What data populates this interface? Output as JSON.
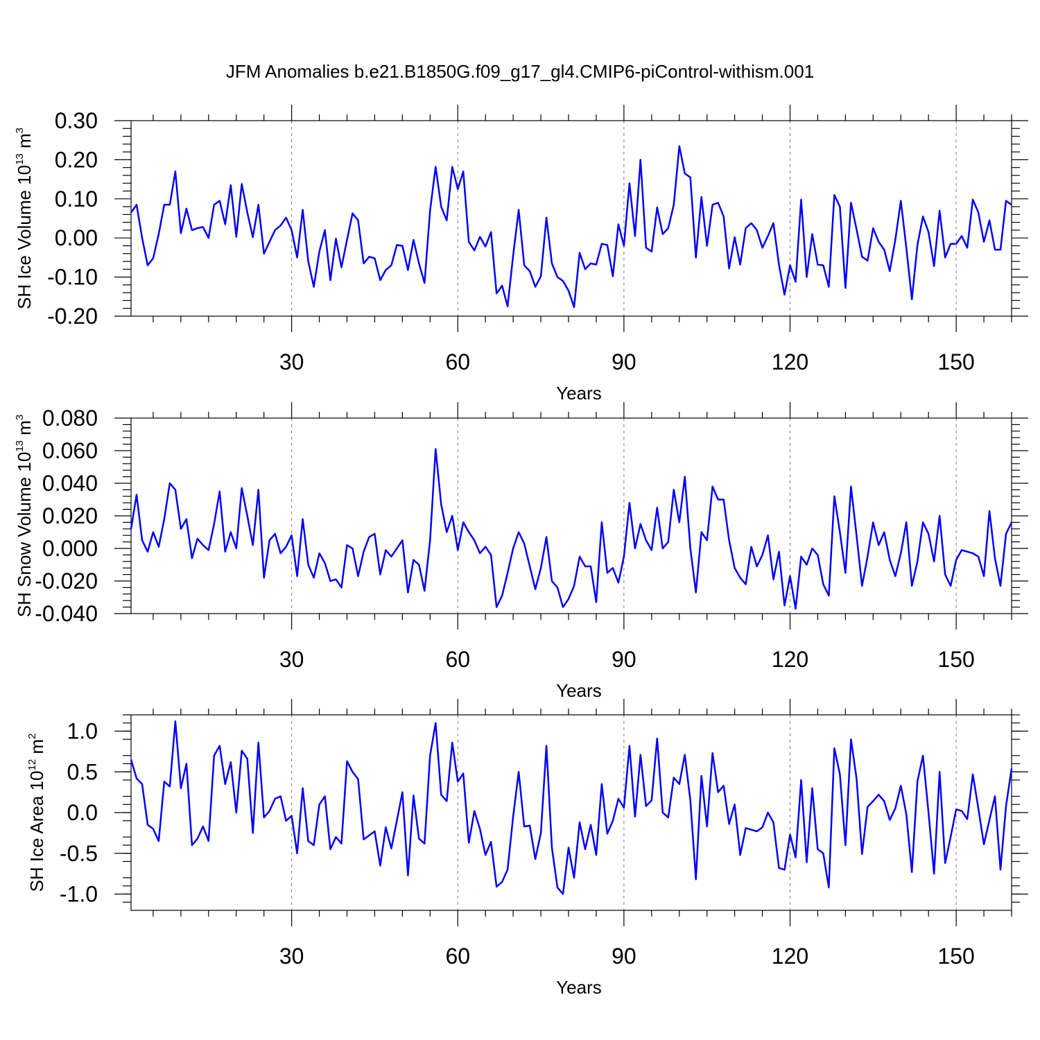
{
  "title": "JFM Anomalies b.e21.B1850G.f09_g17_gl4.CMIP6-piControl-withism.001",
  "colors": {
    "line": "#0000ff",
    "axis": "#000000",
    "grid": "#777777"
  },
  "chart_data": [
    {
      "type": "line",
      "ylabel": {
        "base": "SH Ice Volume 10",
        "exp": "13",
        "unit": " m",
        "unit_exp": "3"
      },
      "xlabel": "Years",
      "xlim": [
        1,
        160
      ],
      "ylim": [
        -0.2,
        0.3
      ],
      "xticks": [
        30,
        60,
        90,
        120,
        150
      ],
      "yticks": [
        "-0.20",
        "-0.10",
        "0.00",
        "0.10",
        "0.20",
        "0.30"
      ],
      "grid_x": true,
      "series": [
        {
          "name": "SH Ice Volume",
          "values": [
            0.065,
            0.085,
            0.0,
            -0.07,
            -0.052,
            0.01,
            0.085,
            0.085,
            0.17,
            0.012,
            0.075,
            0.02,
            0.025,
            0.028,
            0.0,
            0.085,
            0.095,
            0.035,
            0.135,
            0.003,
            0.138,
            0.065,
            0.002,
            0.085,
            -0.04,
            -0.01,
            0.02,
            0.032,
            0.052,
            0.02,
            -0.05,
            0.072,
            -0.06,
            -0.125,
            -0.035,
            0.02,
            -0.108,
            -0.002,
            -0.075,
            -0.005,
            0.063,
            0.045,
            -0.065,
            -0.048,
            -0.052,
            -0.108,
            -0.082,
            -0.07,
            -0.018,
            -0.02,
            -0.082,
            -0.005,
            -0.065,
            -0.115,
            0.07,
            0.182,
            0.08,
            0.045,
            0.182,
            0.125,
            0.17,
            -0.01,
            -0.032,
            0.003,
            -0.022,
            0.015,
            -0.142,
            -0.122,
            -0.175,
            -0.045,
            0.072,
            -0.07,
            -0.085,
            -0.125,
            -0.098,
            0.052,
            -0.065,
            -0.1,
            -0.11,
            -0.135,
            -0.177,
            -0.038,
            -0.08,
            -0.065,
            -0.068,
            -0.015,
            -0.018,
            -0.098,
            0.035,
            -0.02,
            0.14,
            0.005,
            0.2,
            -0.025,
            -0.035,
            0.078,
            0.01,
            0.025,
            0.085,
            0.235,
            0.165,
            0.155,
            -0.05,
            0.105,
            -0.02,
            0.085,
            0.09,
            0.055,
            -0.078,
            0.002,
            -0.068,
            0.025,
            0.038,
            0.02,
            -0.025,
            0.005,
            0.038,
            -0.068,
            -0.145,
            -0.07,
            -0.112,
            0.098,
            -0.1,
            0.01,
            -0.068,
            -0.07,
            -0.125,
            0.11,
            0.08,
            -0.128,
            0.09,
            0.022,
            -0.048,
            -0.058,
            0.025,
            -0.01,
            -0.03,
            -0.085,
            -0.005,
            0.095,
            -0.025,
            -0.157,
            -0.018,
            0.055,
            0.015,
            -0.072,
            0.07,
            -0.05,
            -0.015,
            -0.015,
            0.005,
            -0.025,
            0.098,
            0.065,
            -0.01,
            0.045,
            -0.03,
            -0.03,
            0.095,
            0.085
          ]
        }
      ]
    },
    {
      "type": "line",
      "ylabel": {
        "base": "SH Snow Volume 10",
        "exp": "13",
        "unit": " m",
        "unit_exp": "3"
      },
      "xlabel": "Years",
      "xlim": [
        1,
        160
      ],
      "ylim": [
        -0.04,
        0.08
      ],
      "xticks": [
        30,
        60,
        90,
        120,
        150
      ],
      "yticks": [
        "-0.040",
        "-0.020",
        "0.000",
        "0.020",
        "0.040",
        "0.060",
        "0.080"
      ],
      "grid_x": true,
      "series": [
        {
          "name": "SH Snow Volume",
          "values": [
            0.012,
            0.033,
            0.005,
            -0.002,
            0.01,
            0.001,
            0.018,
            0.04,
            0.036,
            0.012,
            0.018,
            -0.006,
            0.006,
            0.002,
            -0.001,
            0.015,
            0.035,
            -0.002,
            0.01,
            0.0,
            0.037,
            0.02,
            0.002,
            0.036,
            -0.018,
            0.005,
            0.009,
            -0.003,
            0.001,
            0.008,
            -0.017,
            0.018,
            -0.01,
            -0.018,
            -0.003,
            -0.009,
            -0.02,
            -0.019,
            -0.024,
            0.002,
            0.0,
            -0.017,
            -0.002,
            0.007,
            0.009,
            -0.016,
            -0.001,
            -0.005,
            0.0,
            0.005,
            -0.027,
            -0.007,
            -0.01,
            -0.026,
            0.005,
            0.061,
            0.027,
            0.01,
            0.02,
            -0.001,
            0.016,
            0.01,
            0.005,
            -0.003,
            0.001,
            -0.004,
            -0.036,
            -0.029,
            -0.015,
            0.0,
            0.01,
            0.003,
            -0.011,
            -0.025,
            -0.012,
            0.007,
            -0.02,
            -0.024,
            -0.036,
            -0.031,
            -0.023,
            -0.005,
            -0.011,
            -0.011,
            -0.033,
            0.016,
            -0.015,
            -0.012,
            -0.021,
            -0.005,
            0.028,
            0.0,
            0.015,
            0.005,
            -0.001,
            0.025,
            0.0,
            0.004,
            0.036,
            0.016,
            0.044,
            0.0,
            -0.027,
            0.01,
            0.005,
            0.038,
            0.03,
            0.03,
            0.005,
            -0.012,
            -0.018,
            -0.022,
            0.001,
            -0.011,
            -0.004,
            0.008,
            -0.019,
            -0.002,
            -0.035,
            -0.017,
            -0.037,
            -0.005,
            -0.01,
            0.0,
            -0.004,
            -0.022,
            -0.029,
            0.032,
            0.01,
            -0.015,
            0.038,
            0.008,
            -0.023,
            -0.005,
            0.016,
            0.002,
            0.01,
            -0.007,
            -0.017,
            -0.003,
            0.016,
            -0.023,
            -0.008,
            0.016,
            0.009,
            -0.008,
            0.02,
            -0.016,
            -0.023,
            -0.007,
            -0.001,
            -0.002,
            -0.003,
            -0.005,
            -0.017,
            0.023,
            -0.006,
            -0.023,
            0.009,
            0.016
          ]
        }
      ]
    },
    {
      "type": "line",
      "ylabel": {
        "base": "SH Ice Area 10",
        "exp": "12",
        "unit": " m",
        "unit_exp": "2"
      },
      "xlabel": "Years",
      "xlim": [
        1,
        160
      ],
      "ylim": [
        -1.2,
        1.2
      ],
      "xticks": [
        30,
        60,
        90,
        120,
        150
      ],
      "yticks": [
        "-1.0",
        "-0.5",
        "0.0",
        "0.5",
        "1.0"
      ],
      "grid_x": true,
      "series": [
        {
          "name": "SH Ice Area",
          "values": [
            0.65,
            0.42,
            0.35,
            -0.15,
            -0.2,
            -0.35,
            0.38,
            0.32,
            1.12,
            0.3,
            0.6,
            -0.4,
            -0.32,
            -0.17,
            -0.35,
            0.7,
            0.82,
            0.35,
            0.62,
            0.0,
            0.76,
            0.66,
            -0.25,
            0.86,
            -0.06,
            0.02,
            0.17,
            0.2,
            -0.1,
            -0.04,
            -0.5,
            0.3,
            -0.35,
            -0.4,
            0.1,
            0.2,
            -0.45,
            -0.3,
            -0.38,
            0.63,
            0.5,
            0.41,
            -0.33,
            -0.28,
            -0.23,
            -0.65,
            -0.18,
            -0.44,
            -0.1,
            0.25,
            -0.77,
            0.21,
            -0.32,
            -0.38,
            0.7,
            1.1,
            0.22,
            0.14,
            0.86,
            0.38,
            0.48,
            -0.37,
            0.02,
            -0.2,
            -0.52,
            -0.36,
            -0.91,
            -0.85,
            -0.7,
            -0.05,
            0.5,
            -0.17,
            -0.16,
            -0.57,
            -0.25,
            0.82,
            -0.43,
            -0.92,
            -1.0,
            -0.43,
            -0.8,
            -0.12,
            -0.45,
            -0.15,
            -0.52,
            0.35,
            -0.26,
            -0.1,
            0.17,
            0.06,
            0.82,
            -0.05,
            0.71,
            0.08,
            0.15,
            0.91,
            0.0,
            -0.06,
            0.43,
            0.35,
            0.71,
            0.15,
            -0.82,
            0.45,
            -0.17,
            0.73,
            0.25,
            0.33,
            -0.14,
            0.1,
            -0.52,
            -0.19,
            -0.21,
            -0.23,
            -0.18,
            0.0,
            -0.12,
            -0.68,
            -0.7,
            -0.27,
            -0.55,
            0.4,
            -0.61,
            0.3,
            -0.45,
            -0.5,
            -0.92,
            0.79,
            0.47,
            -0.4,
            0.9,
            0.42,
            -0.51,
            0.07,
            0.14,
            0.22,
            0.14,
            -0.09,
            0.05,
            0.33,
            -0.02,
            -0.73,
            0.38,
            0.7,
            0.0,
            -0.75,
            0.5,
            -0.62,
            -0.3,
            0.04,
            0.02,
            -0.08,
            0.47,
            0.05,
            -0.39,
            -0.09,
            0.2,
            -0.7,
            0.08,
            0.54
          ]
        }
      ]
    }
  ]
}
